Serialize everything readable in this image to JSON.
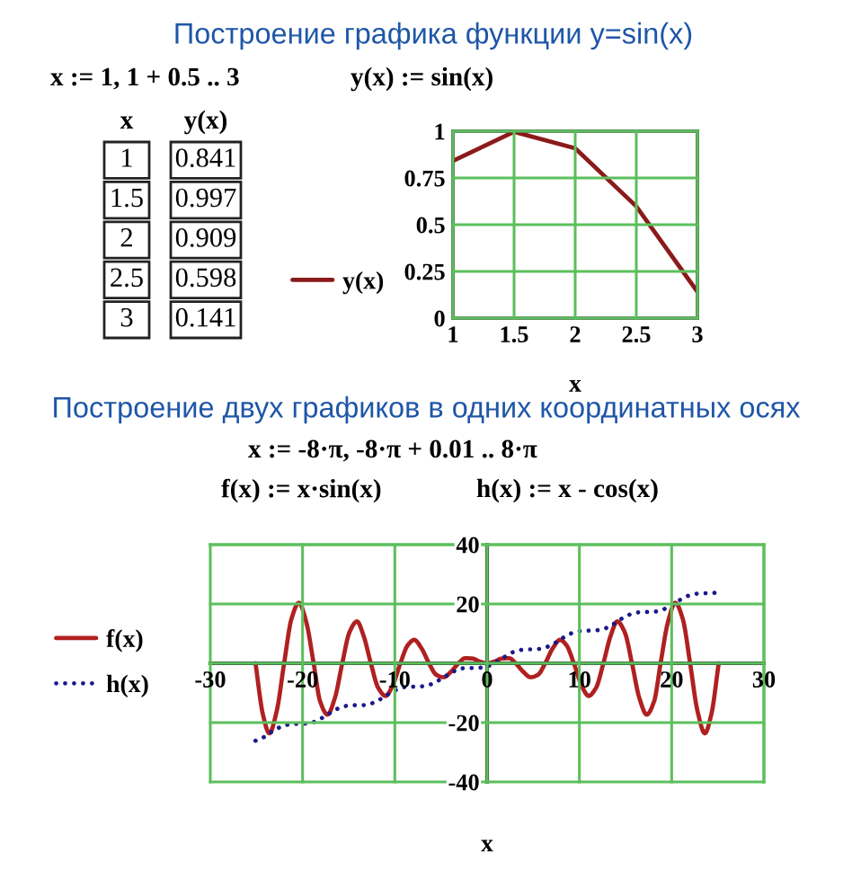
{
  "chart_data": [
    {
      "type": "line",
      "title": "Построение графика функции y=sin(x)",
      "xlabel": "x",
      "annotations": [
        "x := 1, 1 + 0.5 .. 3",
        "y(x) := sin(x)",
        "x",
        "y(x)",
        "1",
        "0.841",
        "1.5",
        "0.997",
        "2",
        "0.909",
        "2.5",
        "0.598",
        "3",
        "0.141"
      ],
      "x": [
        1,
        1.5,
        2,
        2.5,
        3
      ],
      "series": [
        {
          "name": "y(x)",
          "color": "#8b1a1a",
          "values": [
            0.841,
            0.997,
            0.909,
            0.598,
            0.141
          ]
        }
      ],
      "xlim": [
        1,
        3
      ],
      "xticks": [
        1,
        1.5,
        2,
        2.5,
        3
      ],
      "ylim": [
        0,
        1
      ],
      "yticks": [
        0,
        0.25,
        0.5,
        0.75,
        1
      ],
      "grid": true,
      "legend": "left"
    },
    {
      "type": "line",
      "title": "Построение двух графиков в одних координатных осях",
      "xlabel": "x",
      "annotations": [
        "x := -8·π, -8·π + 0.01 .. 8·π",
        "f(x) := x·sin(x)",
        "h(x) := x - cos(x)"
      ],
      "x": [
        -25.1,
        -24.3,
        -23.6,
        -22.8,
        -22.0,
        -21.2,
        -20.4,
        -19.6,
        -18.8,
        -18.1,
        -17.3,
        -16.5,
        -15.7,
        -14.9,
        -14.1,
        -13.4,
        -12.6,
        -11.8,
        -11.0,
        -10.2,
        -9.4,
        -8.6,
        -7.9,
        -7.1,
        -6.3,
        -5.5,
        -4.7,
        -3.9,
        -3.1,
        -2.4,
        -1.6,
        -0.8,
        0,
        0.8,
        1.6,
        2.4,
        3.1,
        3.9,
        4.7,
        5.5,
        6.3,
        7.1,
        7.9,
        8.6,
        9.4,
        10.2,
        11.0,
        11.8,
        12.6,
        13.4,
        14.1,
        14.9,
        15.7,
        16.5,
        17.3,
        18.1,
        18.8,
        19.6,
        20.4,
        21.2,
        22.0,
        22.8,
        23.6,
        24.3,
        25.1
      ],
      "series": [
        {
          "name": "f(x)",
          "color": "#b02020",
          "line_style": "solid",
          "values": [
            0,
            -17.2,
            -23.6,
            -16.1,
            0,
            15.0,
            20.4,
            13.9,
            0,
            -12.8,
            -17.3,
            -11.7,
            0,
            10.6,
            14.1,
            9.4,
            0,
            -8.3,
            -11.0,
            -7.2,
            0,
            6.1,
            7.9,
            5.0,
            0,
            -3.9,
            -4.7,
            -2.8,
            0,
            1.7,
            1.6,
            0.6,
            0,
            0.6,
            1.6,
            1.7,
            0,
            -2.8,
            -4.7,
            -3.9,
            0,
            5.0,
            7.9,
            6.1,
            0,
            -7.2,
            -11.0,
            -8.3,
            0,
            9.4,
            14.1,
            10.6,
            0,
            -11.7,
            -17.3,
            -12.8,
            0,
            13.9,
            20.4,
            15.0,
            0,
            -16.1,
            -23.6,
            -17.2,
            0
          ]
        },
        {
          "name": "h(x)",
          "color": "#1a1a8c",
          "line_style": "dotted",
          "values": [
            -26.1,
            -25.1,
            -23.6,
            -22.1,
            -21.0,
            -20.5,
            -20.4,
            -20.3,
            -19.8,
            -18.8,
            -17.3,
            -15.8,
            -14.7,
            -14.2,
            -14.1,
            -14.1,
            -13.6,
            -12.5,
            -11.0,
            -9.5,
            -8.4,
            -7.9,
            -7.9,
            -7.8,
            -7.3,
            -6.2,
            -4.7,
            -3.2,
            -2.1,
            -1.6,
            -1.6,
            -1.5,
            -1.0,
            0.1,
            1.6,
            3.1,
            4.1,
            4.6,
            4.7,
            4.8,
            5.3,
            6.4,
            7.9,
            9.3,
            10.4,
            10.9,
            11.0,
            11.1,
            11.6,
            12.6,
            14.1,
            15.6,
            16.7,
            17.2,
            17.3,
            17.4,
            17.8,
            18.9,
            20.4,
            21.9,
            23.0,
            23.5,
            23.6,
            23.6,
            24.1
          ]
        }
      ],
      "xlim": [
        -30,
        30
      ],
      "xticks": [
        -30,
        -20,
        -10,
        0,
        10,
        20,
        30
      ],
      "ylim": [
        -40,
        40
      ],
      "yticks": [
        -40,
        -20,
        {
          "value": 0,
          "label": null
        },
        20,
        40
      ],
      "grid": true,
      "legend": "left"
    }
  ]
}
